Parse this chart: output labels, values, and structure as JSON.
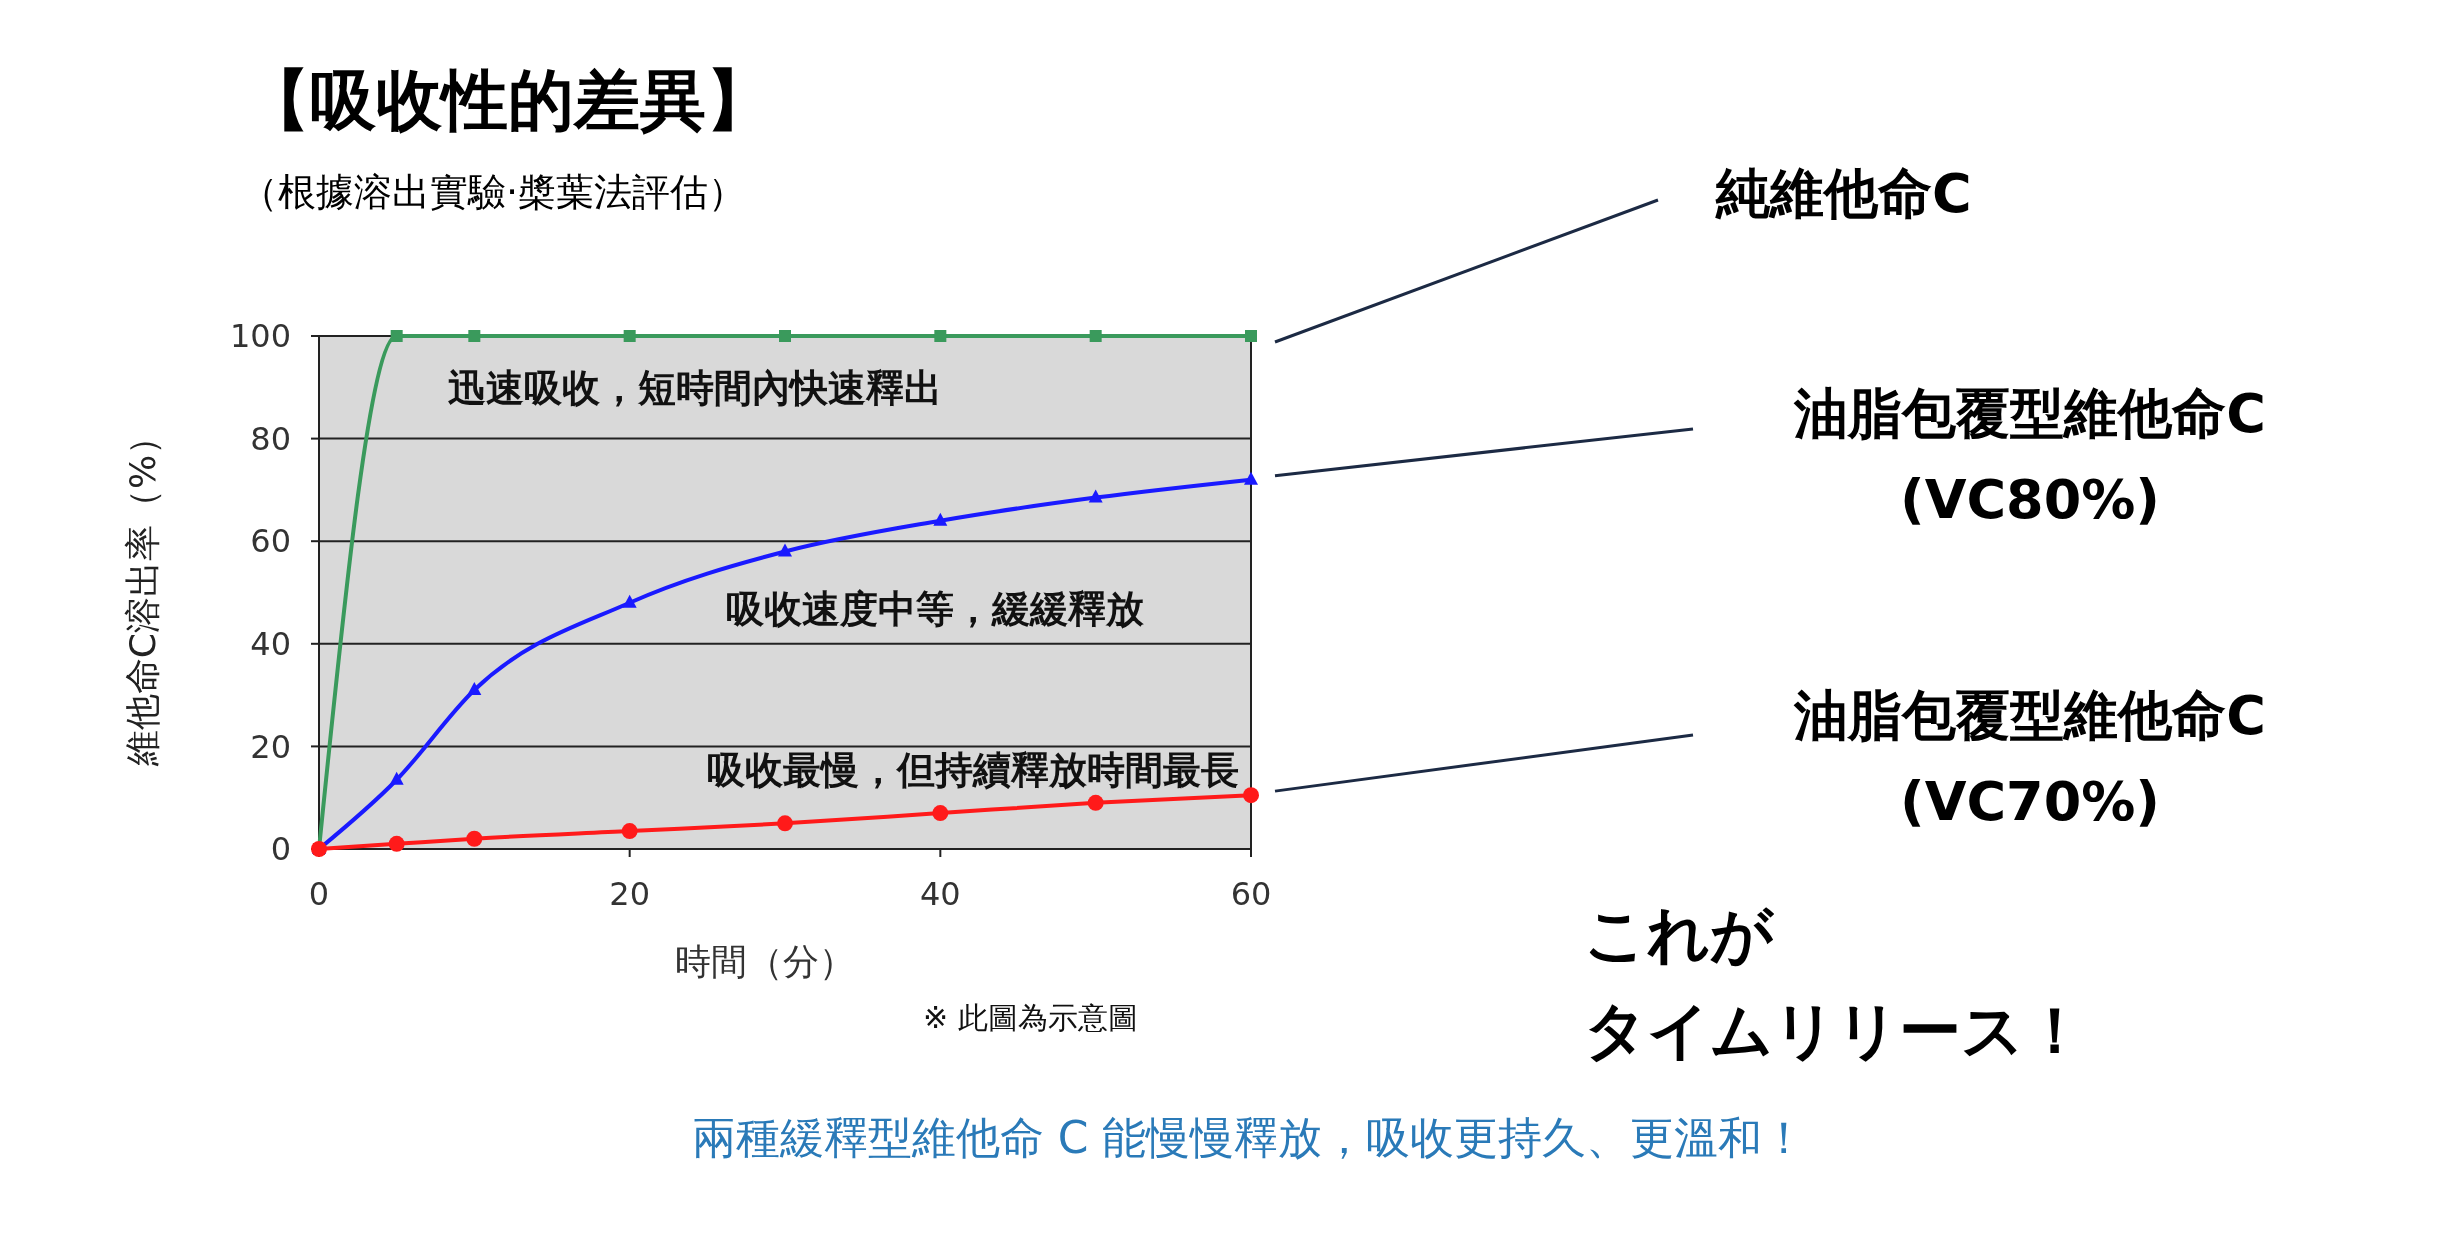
{
  "chart_data": {
    "type": "line",
    "title": "【吸收性的差異】",
    "subtitle": "（根據溶出實驗‧槳葉法評估）",
    "xlabel": "時間（分）",
    "ylabel": "維他命C溶出率（%）",
    "x": [
      0,
      5,
      10,
      20,
      30,
      40,
      50,
      60
    ],
    "series": [
      {
        "name": "純維他命C",
        "color": "#3a9a5c",
        "marker": "square",
        "values": [
          0,
          100,
          100,
          100,
          100,
          100,
          100,
          100
        ]
      },
      {
        "name": "油脂包覆型維他命C\n(VC80%)",
        "color": "#1a1aff",
        "marker": "triangle",
        "values": [
          0,
          13.5,
          31,
          48,
          58,
          64,
          68.5,
          72
        ]
      },
      {
        "name": "油脂包覆型維他命C\n(VC70%)",
        "color": "#ff1a1a",
        "marker": "circle",
        "values": [
          0,
          1,
          2,
          3.5,
          5,
          7,
          9,
          10.5
        ]
      }
    ],
    "xlim": [
      0,
      60
    ],
    "xticks": [
      0,
      20,
      40,
      60
    ],
    "ylim": [
      0,
      100
    ],
    "yticks": [
      0,
      20,
      40,
      60,
      80,
      100
    ],
    "grid": "y",
    "annotations": [
      "迅速吸收，短時間內快速釋出",
      "吸收速度中等，緩緩釋放",
      "吸收最慢，但持續釋放時間最長",
      "※ 此圖為示意圖",
      "これが",
      "タイムリリース！",
      "兩種緩釋型維他命 C 能慢慢釋放，吸收更持久、更溫和！"
    ]
  }
}
